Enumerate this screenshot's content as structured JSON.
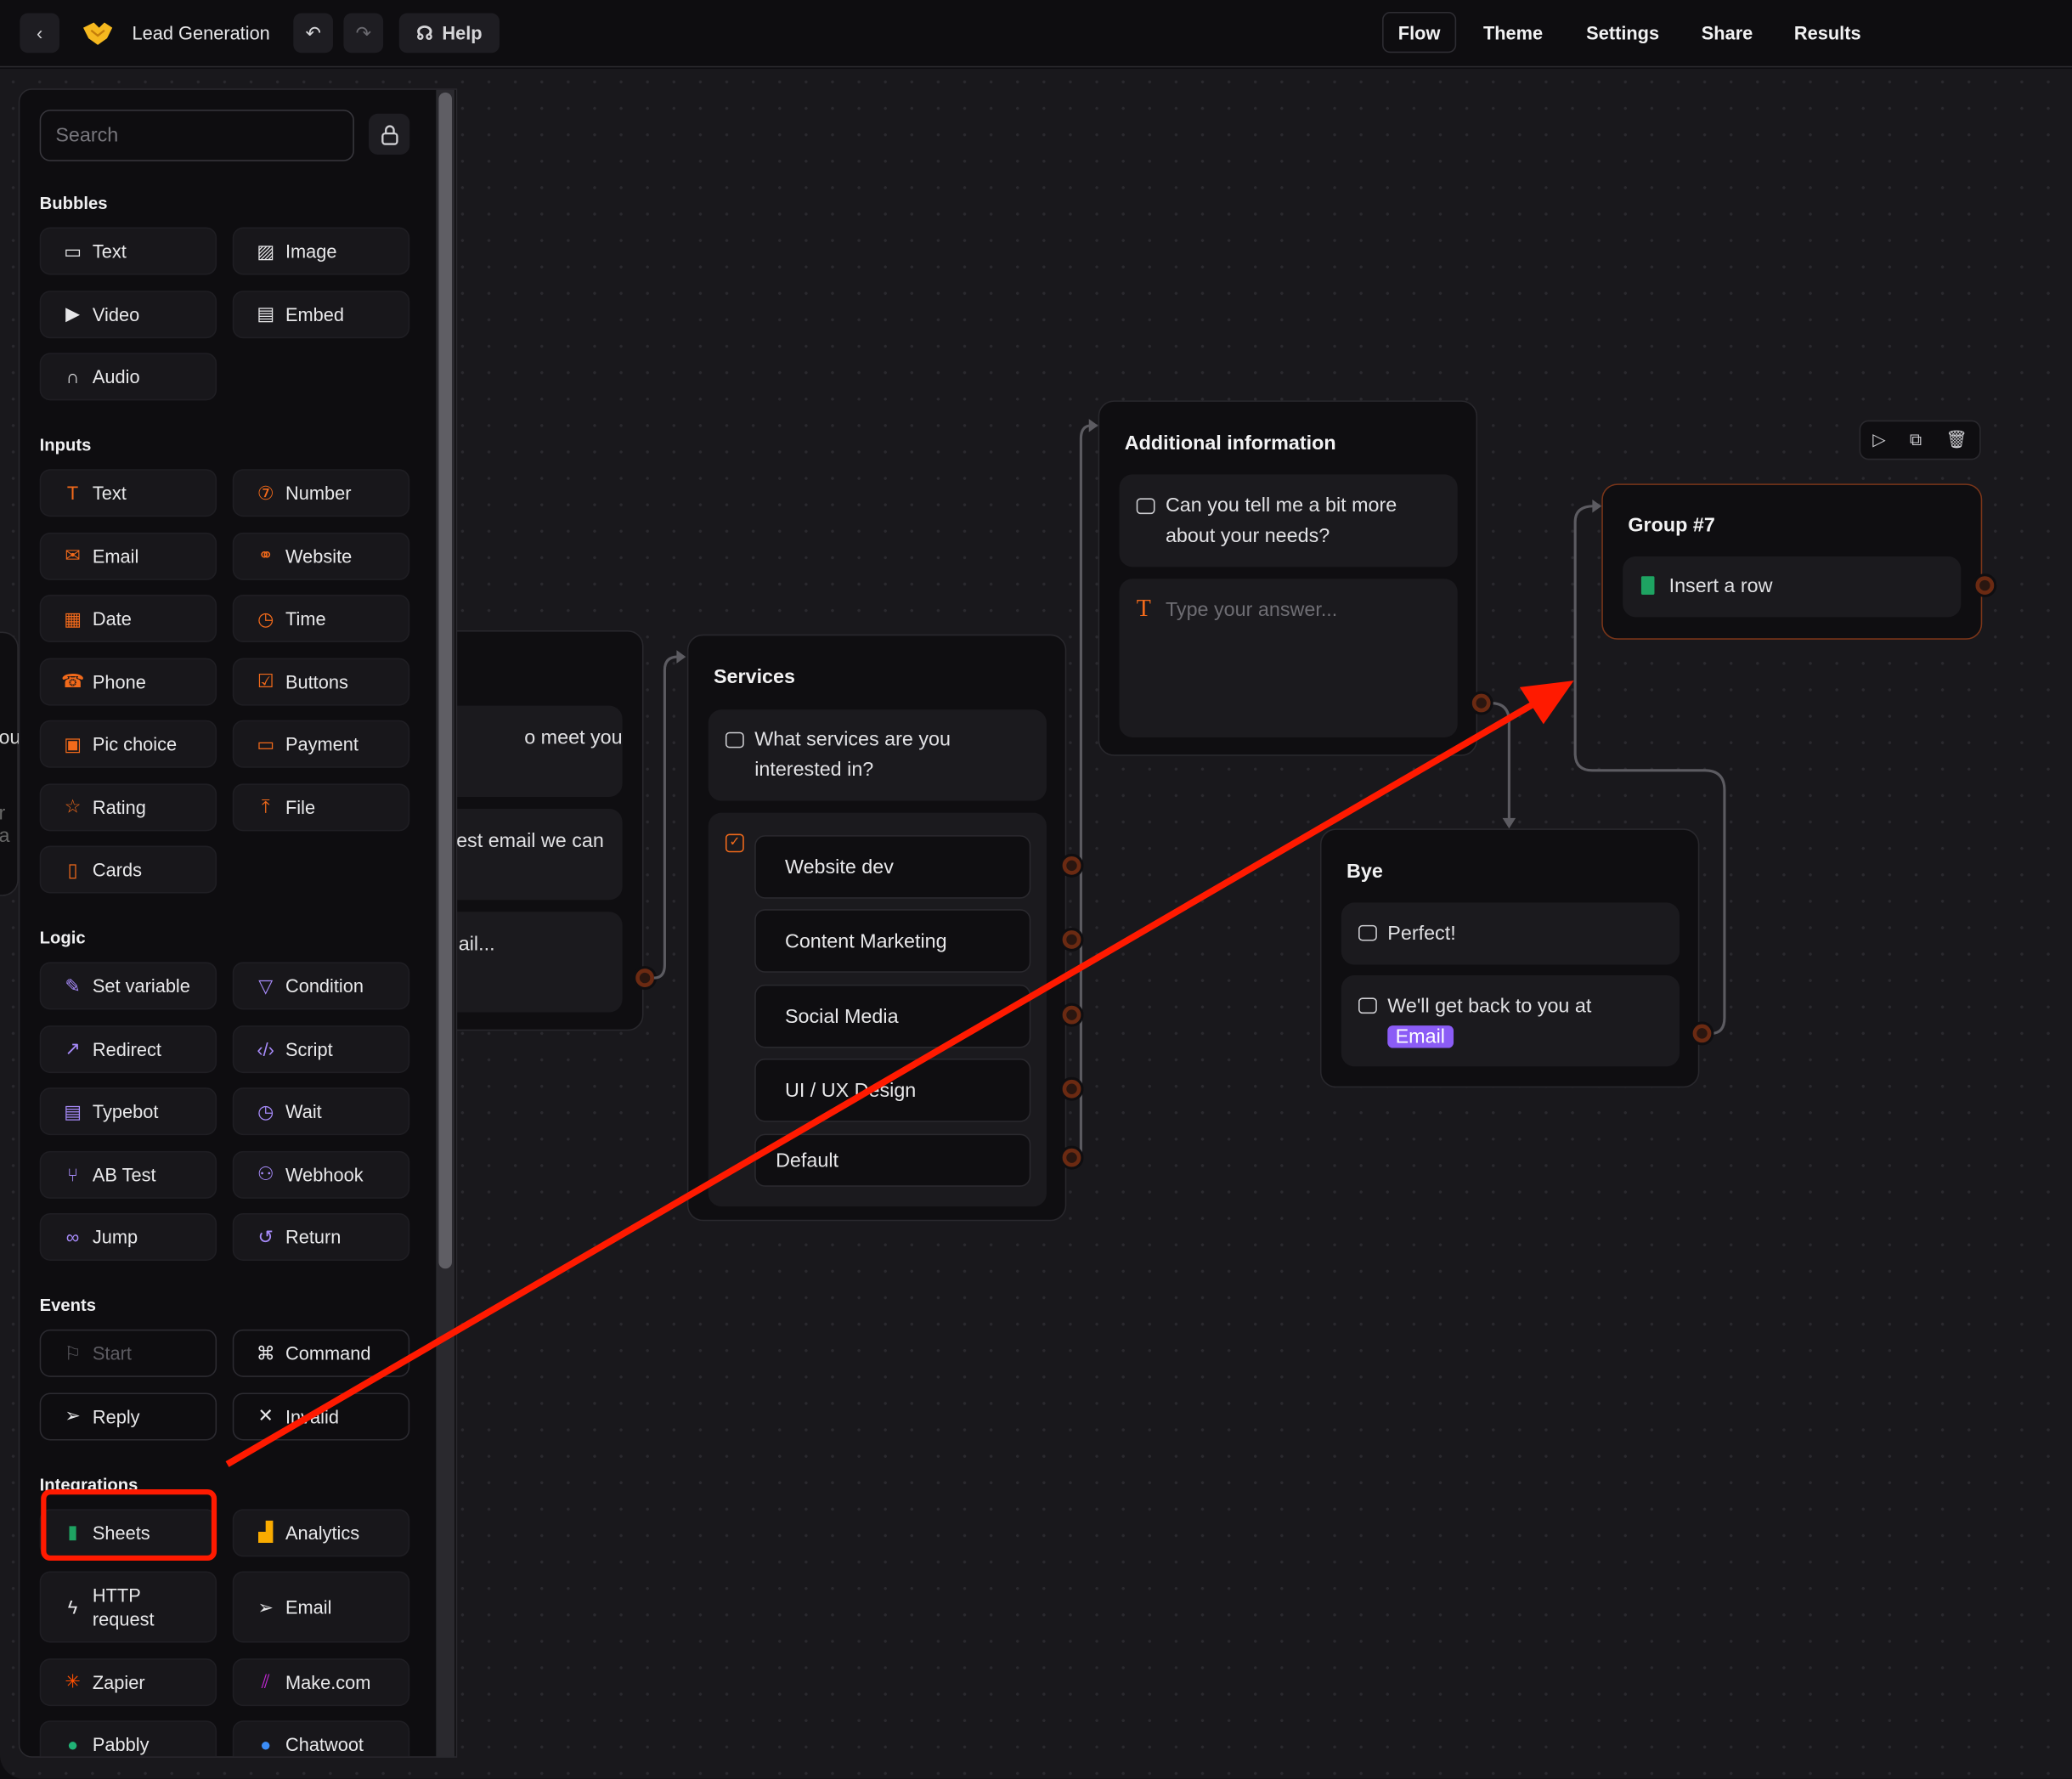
{
  "header": {
    "title": "Lead Generation",
    "help_label": "Help",
    "tabs": [
      "Flow",
      "Theme",
      "Settings",
      "Share",
      "Results"
    ],
    "active_tab": "Flow"
  },
  "sidebar": {
    "search_placeholder": "Search",
    "sections": [
      {
        "title": "Bubbles",
        "items": [
          {
            "label": "Text",
            "icon": "chat-bubble-icon"
          },
          {
            "label": "Image",
            "icon": "image-icon"
          },
          {
            "label": "Video",
            "icon": "video-icon"
          },
          {
            "label": "Embed",
            "icon": "embed-icon"
          },
          {
            "label": "Audio",
            "icon": "headphones-icon"
          }
        ]
      },
      {
        "title": "Inputs",
        "items": [
          {
            "label": "Text",
            "icon": "text-input-icon"
          },
          {
            "label": "Number",
            "icon": "number-icon"
          },
          {
            "label": "Email",
            "icon": "envelope-icon"
          },
          {
            "label": "Website",
            "icon": "link-icon"
          },
          {
            "label": "Date",
            "icon": "calendar-icon"
          },
          {
            "label": "Time",
            "icon": "alarm-clock-icon"
          },
          {
            "label": "Phone",
            "icon": "phone-icon"
          },
          {
            "label": "Buttons",
            "icon": "checkbox-icon"
          },
          {
            "label": "Pic choice",
            "icon": "picture-choice-icon"
          },
          {
            "label": "Payment",
            "icon": "credit-card-icon"
          },
          {
            "label": "Rating",
            "icon": "star-icon"
          },
          {
            "label": "File",
            "icon": "upload-icon"
          },
          {
            "label": "Cards",
            "icon": "cards-icon"
          }
        ]
      },
      {
        "title": "Logic",
        "items": [
          {
            "label": "Set variable",
            "icon": "pencil-icon"
          },
          {
            "label": "Condition",
            "icon": "filter-icon"
          },
          {
            "label": "Redirect",
            "icon": "arrow-up-right-icon"
          },
          {
            "label": "Script",
            "icon": "code-icon"
          },
          {
            "label": "Typebot",
            "icon": "typebot-icon"
          },
          {
            "label": "Wait",
            "icon": "clock-icon"
          },
          {
            "label": "AB Test",
            "icon": "branch-icon"
          },
          {
            "label": "Webhook",
            "icon": "webhook-icon"
          },
          {
            "label": "Jump",
            "icon": "infinity-icon"
          },
          {
            "label": "Return",
            "icon": "return-icon"
          }
        ]
      },
      {
        "title": "Events",
        "items": [
          {
            "label": "Start",
            "icon": "flag-icon",
            "disabled": true
          },
          {
            "label": "Command",
            "icon": "command-icon"
          },
          {
            "label": "Reply",
            "icon": "send-icon"
          },
          {
            "label": "Invalid",
            "icon": "x-icon"
          }
        ]
      },
      {
        "title": "Integrations",
        "items": [
          {
            "label": "Sheets",
            "icon": "google-sheets-icon"
          },
          {
            "label": "Analytics",
            "icon": "google-analytics-icon"
          },
          {
            "label": "HTTP request",
            "icon": "lightning-icon",
            "tall": true
          },
          {
            "label": "Email",
            "icon": "send-icon",
            "tall": true
          },
          {
            "label": "Zapier",
            "icon": "zapier-icon"
          },
          {
            "label": "Make.com",
            "icon": "make-icon"
          },
          {
            "label": "Pabbly",
            "icon": "pabbly-icon"
          },
          {
            "label": "Chatwoot",
            "icon": "chatwoot-icon"
          }
        ]
      }
    ]
  },
  "canvas": {
    "far_left_node": {
      "texts": [
        "ou",
        "r a"
      ]
    },
    "left_node": {
      "blocks": [
        "o meet you",
        "est email we can",
        "ail..."
      ]
    },
    "services": {
      "title": "Services",
      "question": "What services are you interested in?",
      "choices": [
        "Website dev",
        "Content Marketing",
        "Social Media",
        "UI / UX Design"
      ],
      "default_label": "Default"
    },
    "additional_info": {
      "title": "Additional information",
      "question": "Can you tell me a bit more about your needs?",
      "input_placeholder": "Type your answer..."
    },
    "group7": {
      "title": "Group #7",
      "block": "Insert a row",
      "toolbar": [
        "play-icon",
        "duplicate-icon",
        "trash-icon"
      ]
    },
    "bye": {
      "title": "Bye",
      "msg1": "Perfect!",
      "msg2": "We'll get back to you at",
      "variable": "Email"
    }
  },
  "colors": {
    "accent_orange": "#f26a1b",
    "logic_purple": "#a78bfa",
    "annotation_red": "#ff1a00",
    "variable_purple": "#8b5cf6"
  }
}
